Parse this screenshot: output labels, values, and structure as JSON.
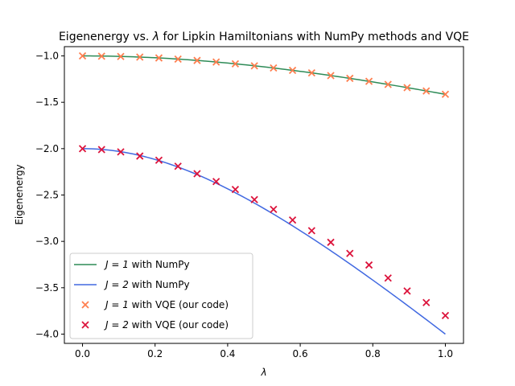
{
  "chart_data": {
    "type": "line",
    "title_prefix": "Eigenenergy vs. ",
    "title_symbol": "λ",
    "title_suffix": " for Lipkin Hamiltonians with NumPy methods and VQE",
    "xlabel": "λ",
    "ylabel": "Eigenenergy",
    "xlim": [
      -0.05,
      1.05
    ],
    "ylim": [
      -4.1,
      -0.9
    ],
    "xticks": [
      0.0,
      0.2,
      0.4,
      0.6,
      0.8,
      1.0
    ],
    "xtick_labels": [
      "0.0",
      "0.2",
      "0.4",
      "0.6",
      "0.8",
      "1.0"
    ],
    "yticks": [
      -1.0,
      -1.5,
      -2.0,
      -2.5,
      -3.0,
      -3.5,
      -4.0
    ],
    "ytick_labels": [
      "−1.0",
      "−1.5",
      "−2.0",
      "−2.5",
      "−3.0",
      "−3.5",
      "−4.0"
    ],
    "grid": false,
    "legend_position": "lower-left",
    "x": [
      0.0,
      0.0526,
      0.1053,
      0.1579,
      0.2105,
      0.2632,
      0.3158,
      0.3684,
      0.4211,
      0.4737,
      0.5263,
      0.5789,
      0.6316,
      0.6842,
      0.7368,
      0.7895,
      0.8421,
      0.8947,
      0.9474,
      1.0
    ],
    "series": [
      {
        "name_math": "J = 1",
        "name_suffix": " with NumPy",
        "kind": "line",
        "color": "#2e8b57",
        "values": [
          -1.0,
          -1.0014,
          -1.0055,
          -1.0124,
          -1.0219,
          -1.034,
          -1.0487,
          -1.0657,
          -1.0851,
          -1.1066,
          -1.1302,
          -1.1557,
          -1.183,
          -1.2119,
          -1.2424,
          -1.2743,
          -1.3076,
          -1.342,
          -1.3775,
          -1.4142
        ]
      },
      {
        "name_math": "J = 2",
        "name_suffix": " with NumPy",
        "kind": "line",
        "color": "#4169e1",
        "values": [
          -2.0,
          -2.0083,
          -2.0332,
          -2.0746,
          -2.1319,
          -2.2047,
          -2.2922,
          -2.3933,
          -2.507,
          -2.6321,
          -2.7674,
          -2.9117,
          -3.064,
          -3.2232,
          -3.3883,
          -3.5585,
          -3.733,
          -3.9111,
          -4.0921,
          -4.0
        ]
      },
      {
        "name_math": "J = 1",
        "name_suffix": " with VQE (our code)",
        "kind": "scatter",
        "marker": "x",
        "color": "#ff7f50",
        "values": [
          -1.0,
          -1.003,
          -1.006,
          -1.013,
          -1.022,
          -1.034,
          -1.049,
          -1.066,
          -1.085,
          -1.107,
          -1.13,
          -1.156,
          -1.183,
          -1.212,
          -1.242,
          -1.274,
          -1.308,
          -1.342,
          -1.378,
          -1.414
        ]
      },
      {
        "name_math": "J = 2",
        "name_suffix": " with VQE (our code)",
        "kind": "scatter",
        "marker": "x",
        "color": "#dc143c",
        "values": [
          -2.0,
          -2.01,
          -2.035,
          -2.08,
          -2.125,
          -2.19,
          -2.27,
          -2.355,
          -2.44,
          -2.55,
          -2.655,
          -2.77,
          -2.885,
          -3.01,
          -3.13,
          -3.255,
          -3.395,
          -3.535,
          -3.66,
          -3.8
        ]
      }
    ]
  }
}
